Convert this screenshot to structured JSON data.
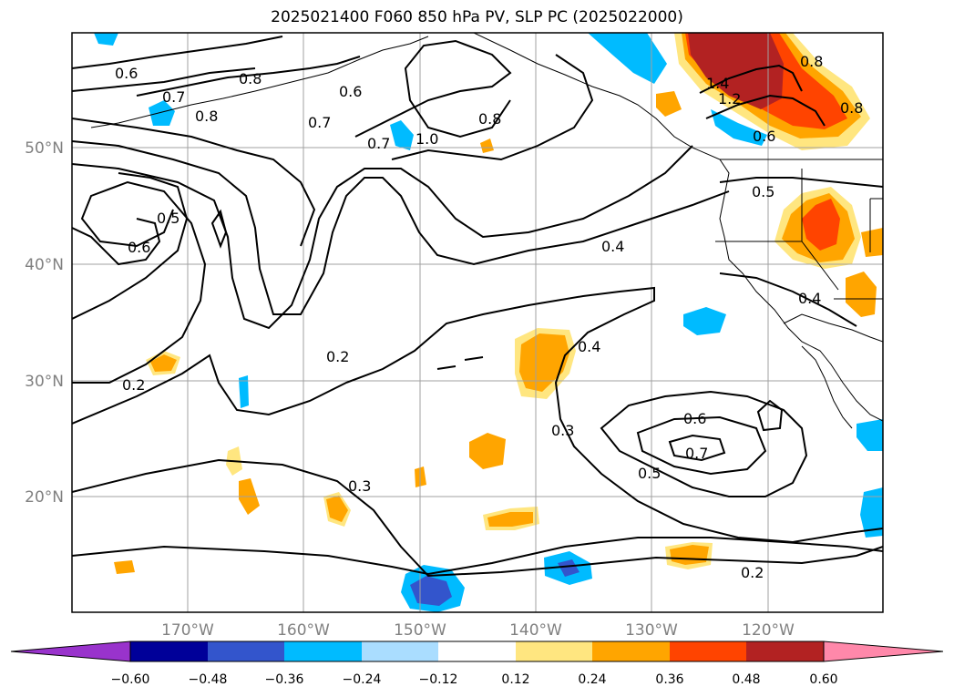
{
  "title": "2025021400 F060 850 hPa PV, SLP PC (2025022000)",
  "lon_ticks": [
    "170°W",
    "160°W",
    "150°W",
    "140°W",
    "130°W",
    "120°W"
  ],
  "lat_ticks": [
    "50°N",
    "40°N",
    "30°N",
    "20°N"
  ],
  "colorbar": {
    "ticks": [
      "−0.60",
      "−0.48",
      "−0.36",
      "−0.24",
      "−0.12",
      "0.12",
      "0.24",
      "0.36",
      "0.48",
      "0.60"
    ],
    "colors": [
      "#9933cc",
      "#000099",
      "#3355cc",
      "#00bbff",
      "#aaddff",
      "#ffffff",
      "#ffe680",
      "#ffa500",
      "#ff4400",
      "#b22222",
      "#ff88aa"
    ]
  },
  "contour_labels": [
    "0.6",
    "0.7",
    "0.8",
    "0.8",
    "0.6",
    "0.7",
    "0.7",
    "1.0",
    "0.8",
    "0.5",
    "0.6",
    "0.4",
    "0.2",
    "0.2",
    "0.4",
    "0.3",
    "0.3",
    "0.6",
    "0.7",
    "0.5",
    "0.4",
    "0.5",
    "0.6",
    "0.2",
    "1.4",
    "1.2",
    "0.8",
    "0.8"
  ]
}
